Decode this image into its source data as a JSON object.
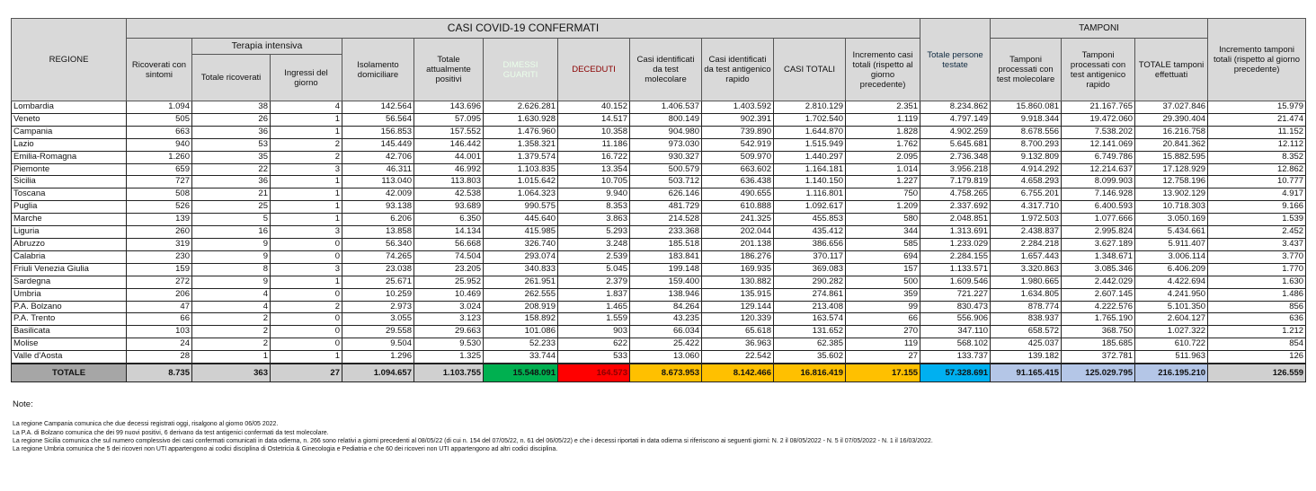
{
  "header": {
    "region": "REGIONE",
    "casi_title": "CASI COVID-19 CONFERMATI",
    "terapia": "Terapia intensiva",
    "tamponi_title": "TAMPONI",
    "columns": [
      "Ricoverati con sintomi",
      "Totale ricoverati",
      "Ingressi del giorno",
      "Isolamento domiciliare",
      "Totale attualmente positivi",
      "DIMESSI GUARITI",
      "DECEDUTI",
      "Casi identificati da test molecolare",
      "Casi identificati da test antigenico rapido",
      "CASI TOTALI",
      "Incremento casi totali (rispetto al giorno precedente)",
      "Totale persone testate",
      "Tamponi processati con test molecolare",
      "Tamponi processati con test antigenico rapido",
      "TOTALE tamponi effettuati",
      "Incremento tamponi totali (rispetto al giorno precedente)"
    ]
  },
  "colors": {
    "header_gray": "#d9d9d9",
    "region_gray": "#a6a6a6",
    "dimessi": "#00b050",
    "deceduti": "#ff0000",
    "casi": "#ffc000",
    "persone": "#00b0f0",
    "tamponi": "#b4c6e7"
  },
  "rows": [
    [
      "Lombardia",
      "1.094",
      "38",
      "4",
      "142.564",
      "143.696",
      "2.626.281",
      "40.152",
      "1.406.537",
      "1.403.592",
      "2.810.129",
      "2.351",
      "8.234.862",
      "15.860.081",
      "21.167.765",
      "37.027.846",
      "15.979"
    ],
    [
      "Veneto",
      "505",
      "26",
      "1",
      "56.564",
      "57.095",
      "1.630.928",
      "14.517",
      "800.149",
      "902.391",
      "1.702.540",
      "1.119",
      "4.797.149",
      "9.918.344",
      "19.472.060",
      "29.390.404",
      "21.474"
    ],
    [
      "Campania",
      "663",
      "36",
      "1",
      "156.853",
      "157.552",
      "1.476.960",
      "10.358",
      "904.980",
      "739.890",
      "1.644.870",
      "1.828",
      "4.902.259",
      "8.678.556",
      "7.538.202",
      "16.216.758",
      "11.152"
    ],
    [
      "Lazio",
      "940",
      "53",
      "2",
      "145.449",
      "146.442",
      "1.358.321",
      "11.186",
      "973.030",
      "542.919",
      "1.515.949",
      "1.762",
      "5.645.681",
      "8.700.293",
      "12.141.069",
      "20.841.362",
      "12.112"
    ],
    [
      "Emilia-Romagna",
      "1.260",
      "35",
      "2",
      "42.706",
      "44.001",
      "1.379.574",
      "16.722",
      "930.327",
      "509.970",
      "1.440.297",
      "2.095",
      "2.736.348",
      "9.132.809",
      "6.749.786",
      "15.882.595",
      "8.352"
    ],
    [
      "Piemonte",
      "659",
      "22",
      "3",
      "46.311",
      "46.992",
      "1.103.835",
      "13.354",
      "500.579",
      "663.602",
      "1.164.181",
      "1.014",
      "3.956.218",
      "4.914.292",
      "12.214.637",
      "17.128.929",
      "12.862"
    ],
    [
      "Sicilia",
      "727",
      "36",
      "1",
      "113.040",
      "113.803",
      "1.015.642",
      "10.705",
      "503.712",
      "636.438",
      "1.140.150",
      "1.227",
      "7.179.819",
      "4.658.293",
      "8.099.903",
      "12.758.196",
      "10.777"
    ],
    [
      "Toscana",
      "508",
      "21",
      "1",
      "42.009",
      "42.538",
      "1.064.323",
      "9.940",
      "626.146",
      "490.655",
      "1.116.801",
      "750",
      "4.758.265",
      "6.755.201",
      "7.146.928",
      "13.902.129",
      "4.917"
    ],
    [
      "Puglia",
      "526",
      "25",
      "1",
      "93.138",
      "93.689",
      "990.575",
      "8.353",
      "481.729",
      "610.888",
      "1.092.617",
      "1.209",
      "2.337.692",
      "4.317.710",
      "6.400.593",
      "10.718.303",
      "9.166"
    ],
    [
      "Marche",
      "139",
      "5",
      "1",
      "6.206",
      "6.350",
      "445.640",
      "3.863",
      "214.528",
      "241.325",
      "455.853",
      "580",
      "2.048.851",
      "1.972.503",
      "1.077.666",
      "3.050.169",
      "1.539"
    ],
    [
      "Liguria",
      "260",
      "16",
      "3",
      "13.858",
      "14.134",
      "415.985",
      "5.293",
      "233.368",
      "202.044",
      "435.412",
      "344",
      "1.313.691",
      "2.438.837",
      "2.995.824",
      "5.434.661",
      "2.452"
    ],
    [
      "Abruzzo",
      "319",
      "9",
      "0",
      "56.340",
      "56.668",
      "326.740",
      "3.248",
      "185.518",
      "201.138",
      "386.656",
      "585",
      "1.233.029",
      "2.284.218",
      "3.627.189",
      "5.911.407",
      "3.437"
    ],
    [
      "Calabria",
      "230",
      "9",
      "0",
      "74.265",
      "74.504",
      "293.074",
      "2.539",
      "183.841",
      "186.276",
      "370.117",
      "694",
      "2.284.155",
      "1.657.443",
      "1.348.671",
      "3.006.114",
      "3.770"
    ],
    [
      "Friuli Venezia Giulia",
      "159",
      "8",
      "3",
      "23.038",
      "23.205",
      "340.833",
      "5.045",
      "199.148",
      "169.935",
      "369.083",
      "157",
      "1.133.571",
      "3.320.863",
      "3.085.346",
      "6.406.209",
      "1.770"
    ],
    [
      "Sardegna",
      "272",
      "9",
      "1",
      "25.671",
      "25.952",
      "261.951",
      "2.379",
      "159.400",
      "130.882",
      "290.282",
      "500",
      "1.609.546",
      "1.980.665",
      "2.442.029",
      "4.422.694",
      "1.630"
    ],
    [
      "Umbria",
      "206",
      "4",
      "0",
      "10.259",
      "10.469",
      "262.555",
      "1.837",
      "138.946",
      "135.915",
      "274.861",
      "359",
      "721.227",
      "1.634.805",
      "2.607.145",
      "4.241.950",
      "1.486"
    ],
    [
      "P.A. Bolzano",
      "47",
      "4",
      "2",
      "2.973",
      "3.024",
      "208.919",
      "1.465",
      "84.264",
      "129.144",
      "213.408",
      "99",
      "830.473",
      "878.774",
      "4.222.576",
      "5.101.350",
      "856"
    ],
    [
      "P.A. Trento",
      "66",
      "2",
      "0",
      "3.055",
      "3.123",
      "158.892",
      "1.559",
      "43.235",
      "120.339",
      "163.574",
      "66",
      "556.906",
      "838.937",
      "1.765.190",
      "2.604.127",
      "636"
    ],
    [
      "Basilicata",
      "103",
      "2",
      "0",
      "29.558",
      "29.663",
      "101.086",
      "903",
      "66.034",
      "65.618",
      "131.652",
      "270",
      "347.110",
      "658.572",
      "368.750",
      "1.027.322",
      "1.212"
    ],
    [
      "Molise",
      "24",
      "2",
      "0",
      "9.504",
      "9.530",
      "52.233",
      "622",
      "25.422",
      "36.963",
      "62.385",
      "119",
      "568.102",
      "425.037",
      "185.685",
      "610.722",
      "854"
    ],
    [
      "Valle d'Aosta",
      "28",
      "1",
      "1",
      "1.296",
      "1.325",
      "33.744",
      "533",
      "13.060",
      "22.542",
      "35.602",
      "27",
      "133.737",
      "139.182",
      "372.781",
      "511.963",
      "126"
    ]
  ],
  "total": [
    "TOTALE",
    "8.735",
    "363",
    "27",
    "1.094.657",
    "1.103.755",
    "15.548.091",
    "164.573",
    "8.673.953",
    "8.142.466",
    "16.816.419",
    "17.155",
    "57.328.691",
    "91.165.415",
    "125.029.795",
    "216.195.210",
    "126.559"
  ],
  "notes": {
    "heading": "Note:",
    "lines": [
      "La regione Campania comunica che due decessi registrati oggi, risalgono al giorno 06/05 2022.",
      "La P.A. di Bolzano comunica che dei 99 nuovi positivi, 6 derivano da test antigenici confermati da test molecolare.",
      "La regione Sicilia comunica che sul numero complessivo dei casi confermati comunicati in data odierna, n. 266 sono relativi a giorni precedenti al 08/05/22 (di cui n. 154 del 07/05/22, n. 61 del 06/05/22) e che i decessi riportati in data odierna si riferiscono ai seguenti giorni: N. 2 il 08/05/2022 - N. 5 il 07/05/2022 - N. 1 il 16/03/2022.",
      "La regione Umbria comunica che  5 dei ricoveri non UTI appartengono ai codici disciplina di Ostetricia & Ginecologia e Pediatria e che 60 dei ricoveri non UTI appartengono ad altri codici disciplina."
    ]
  }
}
